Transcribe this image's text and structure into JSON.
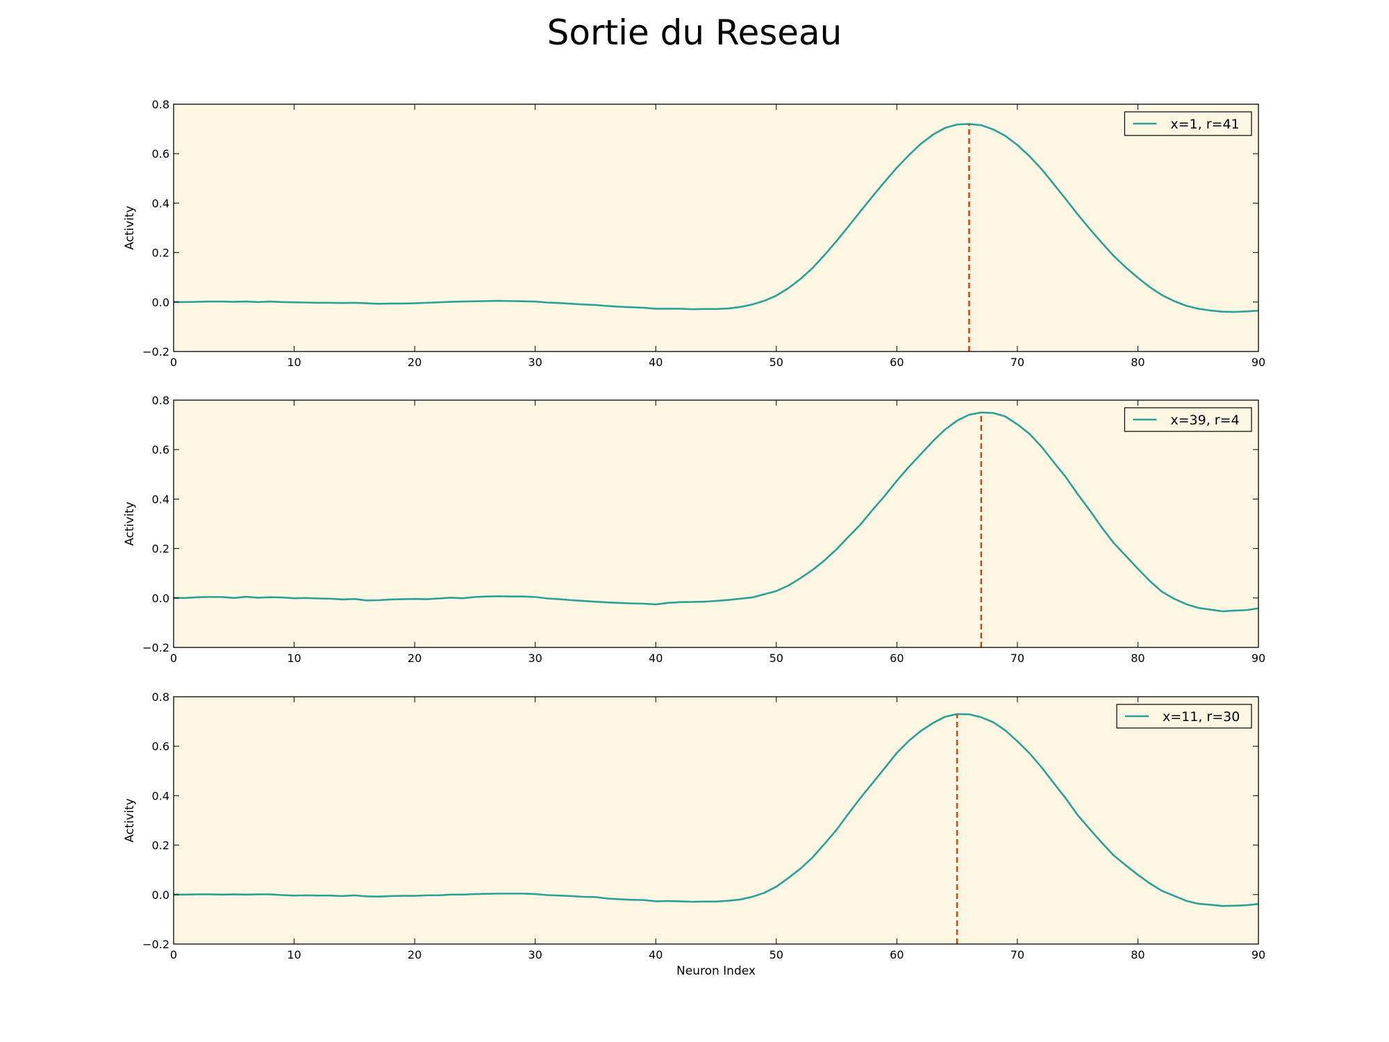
{
  "title": "Sortie du Reseau",
  "colors": {
    "background": "#fdf6e3",
    "line": "#2aa198",
    "marker": "#cb4b16",
    "axes": "#000000"
  },
  "chart_data": [
    {
      "type": "line",
      "xlabel": "",
      "ylabel": "Activity",
      "xlim": [
        0,
        90
      ],
      "ylim": [
        -0.2,
        0.8
      ],
      "xticks": [
        "0",
        "10",
        "20",
        "30",
        "40",
        "50",
        "60",
        "70",
        "80",
        "90"
      ],
      "yticks": [
        "−0.2",
        "0.0",
        "0.2",
        "0.4",
        "0.6",
        "0.8"
      ],
      "grid": false,
      "legend_position": "top-right",
      "series": [
        {
          "name": "x=1, r=41",
          "x": [
            0,
            1,
            2,
            3,
            4,
            5,
            6,
            7,
            8,
            9,
            10,
            11,
            12,
            13,
            14,
            15,
            16,
            17,
            18,
            19,
            20,
            21,
            22,
            23,
            24,
            25,
            26,
            27,
            28,
            29,
            30,
            31,
            32,
            33,
            34,
            35,
            36,
            37,
            38,
            39,
            40,
            41,
            42,
            43,
            44,
            45,
            46,
            47,
            48,
            49,
            50,
            51,
            52,
            53,
            54,
            55,
            56,
            57,
            58,
            59,
            60,
            61,
            62,
            63,
            64,
            65,
            66,
            67,
            68,
            69,
            70,
            71,
            72,
            73,
            74,
            75,
            76,
            77,
            78,
            79,
            80,
            81,
            82,
            83,
            84,
            85,
            86,
            87,
            88,
            89,
            90
          ],
          "y": [
            0.0,
            0.0,
            0.001,
            0.002,
            0.002,
            0.001,
            0.002,
            0.0,
            0.002,
            0.0,
            -0.001,
            -0.002,
            -0.003,
            -0.003,
            -0.004,
            -0.003,
            -0.005,
            -0.007,
            -0.006,
            -0.006,
            -0.005,
            -0.003,
            -0.001,
            0.001,
            0.002,
            0.003,
            0.004,
            0.005,
            0.004,
            0.003,
            0.002,
            -0.002,
            -0.004,
            -0.007,
            -0.01,
            -0.012,
            -0.016,
            -0.019,
            -0.021,
            -0.023,
            -0.027,
            -0.027,
            -0.027,
            -0.029,
            -0.028,
            -0.028,
            -0.026,
            -0.02,
            -0.01,
            0.005,
            0.026,
            0.056,
            0.093,
            0.137,
            0.19,
            0.247,
            0.307,
            0.368,
            0.428,
            0.487,
            0.543,
            0.594,
            0.64,
            0.677,
            0.704,
            0.718,
            0.72,
            0.715,
            0.698,
            0.672,
            0.635,
            0.59,
            0.538,
            0.478,
            0.417,
            0.355,
            0.296,
            0.24,
            0.186,
            0.14,
            0.098,
            0.06,
            0.028,
            0.004,
            -0.015,
            -0.027,
            -0.034,
            -0.039,
            -0.04,
            -0.038,
            -0.035
          ]
        }
      ],
      "marker_x": 66
    },
    {
      "type": "line",
      "xlabel": "",
      "ylabel": "Activity",
      "xlim": [
        0,
        90
      ],
      "ylim": [
        -0.2,
        0.8
      ],
      "xticks": [
        "0",
        "10",
        "20",
        "30",
        "40",
        "50",
        "60",
        "70",
        "80",
        "90"
      ],
      "yticks": [
        "−0.2",
        "0.0",
        "0.2",
        "0.4",
        "0.6",
        "0.8"
      ],
      "grid": false,
      "legend_position": "top-right",
      "series": [
        {
          "name": "x=39, r=4",
          "x": [
            0,
            1,
            2,
            3,
            4,
            5,
            6,
            7,
            8,
            9,
            10,
            11,
            12,
            13,
            14,
            15,
            16,
            17,
            18,
            19,
            20,
            21,
            22,
            23,
            24,
            25,
            26,
            27,
            28,
            29,
            30,
            31,
            32,
            33,
            34,
            35,
            36,
            37,
            38,
            39,
            40,
            41,
            42,
            43,
            44,
            45,
            46,
            47,
            48,
            49,
            50,
            51,
            52,
            53,
            54,
            55,
            56,
            57,
            58,
            59,
            60,
            61,
            62,
            63,
            64,
            65,
            66,
            67,
            68,
            69,
            70,
            71,
            72,
            73,
            74,
            75,
            76,
            77,
            78,
            79,
            80,
            81,
            82,
            83,
            84,
            85,
            86,
            87,
            88,
            89,
            90
          ],
          "y": [
            0.0,
            0.0,
            0.003,
            0.004,
            0.004,
            0.0,
            0.005,
            0.001,
            0.003,
            0.002,
            -0.001,
            0.0,
            -0.002,
            -0.003,
            -0.006,
            -0.004,
            -0.01,
            -0.009,
            -0.006,
            -0.005,
            -0.004,
            -0.005,
            -0.002,
            0.001,
            -0.001,
            0.004,
            0.006,
            0.007,
            0.006,
            0.006,
            0.004,
            -0.002,
            -0.005,
            -0.009,
            -0.012,
            -0.015,
            -0.018,
            -0.02,
            -0.022,
            -0.023,
            -0.026,
            -0.02,
            -0.017,
            -0.016,
            -0.015,
            -0.012,
            -0.008,
            -0.003,
            0.002,
            0.015,
            0.028,
            0.05,
            0.08,
            0.113,
            0.152,
            0.197,
            0.248,
            0.298,
            0.357,
            0.413,
            0.474,
            0.53,
            0.582,
            0.634,
            0.681,
            0.717,
            0.741,
            0.75,
            0.748,
            0.734,
            0.702,
            0.664,
            0.612,
            0.55,
            0.49,
            0.42,
            0.355,
            0.285,
            0.222,
            0.17,
            0.118,
            0.068,
            0.025,
            -0.003,
            -0.025,
            -0.04,
            -0.047,
            -0.054,
            -0.051,
            -0.049,
            -0.042
          ]
        }
      ],
      "marker_x": 67
    },
    {
      "type": "line",
      "xlabel": "Neuron Index",
      "ylabel": "Activity",
      "xlim": [
        0,
        90
      ],
      "ylim": [
        -0.2,
        0.8
      ],
      "xticks": [
        "0",
        "10",
        "20",
        "30",
        "40",
        "50",
        "60",
        "70",
        "80",
        "90"
      ],
      "yticks": [
        "−0.2",
        "0.0",
        "0.2",
        "0.4",
        "0.6",
        "0.8"
      ],
      "grid": false,
      "legend_position": "top-right",
      "series": [
        {
          "name": "x=11, r=30",
          "x": [
            0,
            1,
            2,
            3,
            4,
            5,
            6,
            7,
            8,
            9,
            10,
            11,
            12,
            13,
            14,
            15,
            16,
            17,
            18,
            19,
            20,
            21,
            22,
            23,
            24,
            25,
            26,
            27,
            28,
            29,
            30,
            31,
            32,
            33,
            34,
            35,
            36,
            37,
            38,
            39,
            40,
            41,
            42,
            43,
            44,
            45,
            46,
            47,
            48,
            49,
            50,
            51,
            52,
            53,
            54,
            55,
            56,
            57,
            58,
            59,
            60,
            61,
            62,
            63,
            64,
            65,
            66,
            67,
            68,
            69,
            70,
            71,
            72,
            73,
            74,
            75,
            76,
            77,
            78,
            79,
            80,
            81,
            82,
            83,
            84,
            85,
            86,
            87,
            88,
            89,
            90
          ],
          "y": [
            0.0,
            0.0,
            0.001,
            0.001,
            0.0,
            0.001,
            0.0,
            0.001,
            0.001,
            -0.002,
            -0.004,
            -0.003,
            -0.004,
            -0.004,
            -0.006,
            -0.003,
            -0.007,
            -0.008,
            -0.006,
            -0.005,
            -0.005,
            -0.003,
            -0.003,
            0.0,
            0.0,
            0.002,
            0.003,
            0.004,
            0.004,
            0.004,
            0.002,
            -0.002,
            -0.004,
            -0.006,
            -0.009,
            -0.01,
            -0.016,
            -0.019,
            -0.021,
            -0.022,
            -0.027,
            -0.026,
            -0.027,
            -0.029,
            -0.028,
            -0.028,
            -0.025,
            -0.02,
            -0.009,
            0.007,
            0.032,
            0.067,
            0.105,
            0.15,
            0.205,
            0.262,
            0.328,
            0.392,
            0.452,
            0.512,
            0.573,
            0.622,
            0.662,
            0.694,
            0.719,
            0.73,
            0.729,
            0.717,
            0.697,
            0.664,
            0.62,
            0.572,
            0.515,
            0.452,
            0.39,
            0.322,
            0.265,
            0.21,
            0.158,
            0.118,
            0.08,
            0.045,
            0.015,
            -0.005,
            -0.025,
            -0.037,
            -0.041,
            -0.046,
            -0.045,
            -0.043,
            -0.038
          ]
        }
      ],
      "marker_x": 65
    }
  ]
}
